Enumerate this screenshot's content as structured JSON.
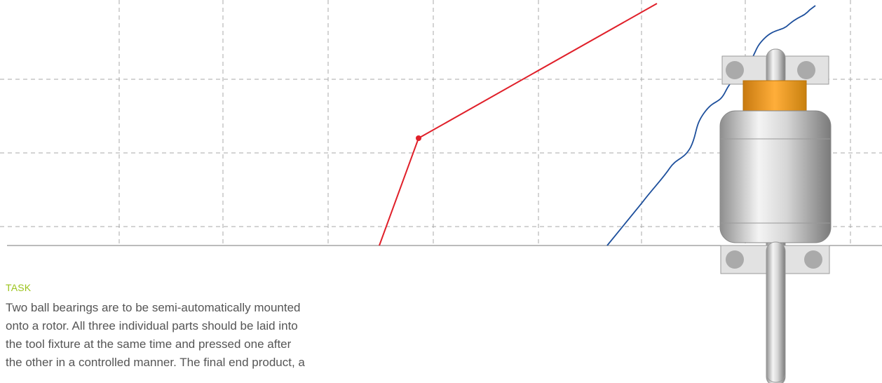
{
  "task": {
    "label": "TASK",
    "lines": [
      "Two ball bearings are to be semi-automatically mounted",
      "onto a rotor. All three individual parts should be laid into",
      "the tool fixture at the same time and pressed one after",
      "the other in a controlled manner. The final end product, a"
    ]
  }
}
